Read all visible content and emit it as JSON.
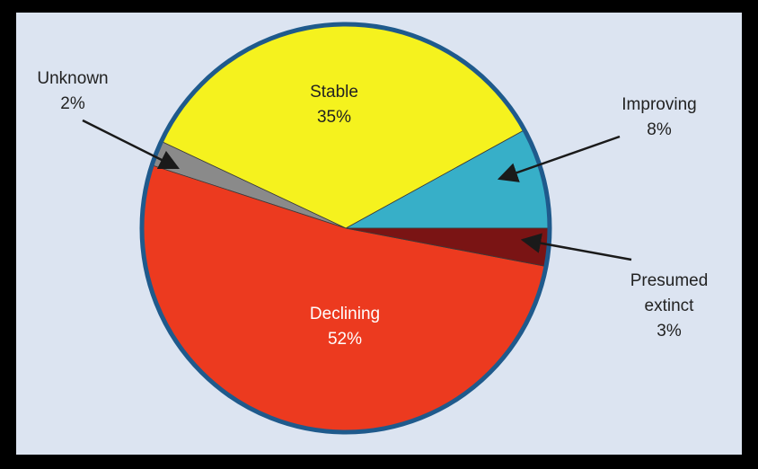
{
  "chart_data": {
    "type": "pie",
    "title": "",
    "slices": [
      {
        "label": "Improving",
        "value": 8,
        "value_label": "8%",
        "color": "#37afc8"
      },
      {
        "label": "Stable",
        "value": 35,
        "value_label": "35%",
        "color": "#f5f21e"
      },
      {
        "label": "Unknown",
        "value": 2,
        "value_label": "2%",
        "color": "#8a8a8a"
      },
      {
        "label": "Declining",
        "value": 52,
        "value_label": "52%",
        "color": "#ec3a1f"
      },
      {
        "label": "Presumed extinct",
        "value": 3,
        "value_label": "3%",
        "color": "#7a1414"
      }
    ],
    "start_angle_deg": 0,
    "direction": "counterclockwise",
    "rim_color": "#1f5a8c",
    "panel_background": "#dce4f1",
    "page_background": "#000000"
  },
  "labels": {
    "improving": {
      "name": "Improving",
      "percent": "8%"
    },
    "stable": {
      "name": "Stable",
      "percent": "35%"
    },
    "unknown": {
      "name": "Unknown",
      "percent": "2%"
    },
    "declining": {
      "name": "Declining",
      "percent": "52%"
    },
    "extinct": {
      "name_line1": "Presumed",
      "name_line2": "extinct",
      "percent": "3%"
    }
  }
}
